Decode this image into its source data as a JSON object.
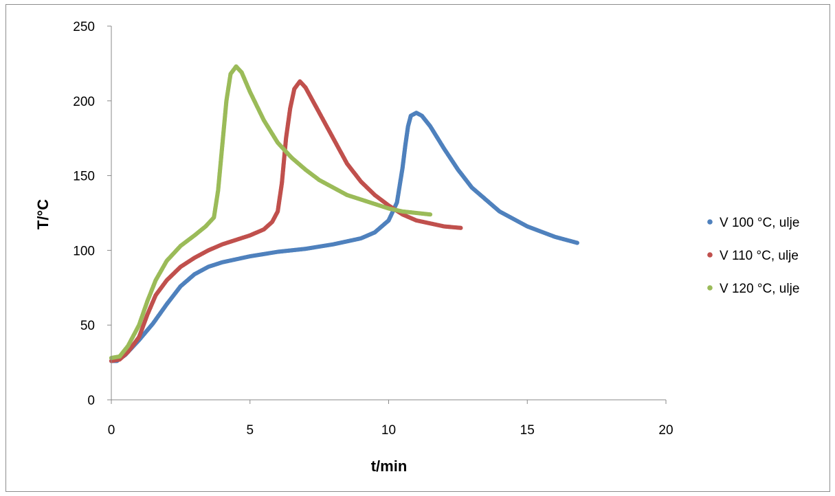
{
  "chart_data": {
    "type": "scatter",
    "title": "",
    "xlabel": "t/min",
    "ylabel": "T/°C",
    "xlim": [
      0,
      20
    ],
    "ylim": [
      0,
      250
    ],
    "xticks": [
      "0",
      "5",
      "10",
      "15",
      "20"
    ],
    "yticks": [
      "0",
      "50",
      "100",
      "150",
      "200",
      "250"
    ],
    "grid": false,
    "legend_position": "right",
    "series": [
      {
        "name": "V 100 °C, ulje",
        "color": "#4f81bd",
        "points": [
          [
            0,
            26
          ],
          [
            0.2,
            26
          ],
          [
            0.5,
            30
          ],
          [
            1.0,
            40
          ],
          [
            1.5,
            51
          ],
          [
            2.0,
            64
          ],
          [
            2.5,
            76
          ],
          [
            3.0,
            84
          ],
          [
            3.5,
            89
          ],
          [
            4.0,
            92
          ],
          [
            5.0,
            96
          ],
          [
            6.0,
            99
          ],
          [
            7.0,
            101
          ],
          [
            8.0,
            104
          ],
          [
            9.0,
            108
          ],
          [
            9.5,
            112
          ],
          [
            10.0,
            120
          ],
          [
            10.3,
            132
          ],
          [
            10.5,
            155
          ],
          [
            10.6,
            170
          ],
          [
            10.7,
            183
          ],
          [
            10.8,
            190
          ],
          [
            11.0,
            192
          ],
          [
            11.2,
            190
          ],
          [
            11.5,
            183
          ],
          [
            12.0,
            168
          ],
          [
            12.5,
            154
          ],
          [
            13.0,
            142
          ],
          [
            14.0,
            126
          ],
          [
            15.0,
            116
          ],
          [
            16.0,
            109
          ],
          [
            16.8,
            105
          ]
        ]
      },
      {
        "name": "V 110 °C, ulje",
        "color": "#c0504d",
        "points": [
          [
            0,
            26
          ],
          [
            0.3,
            27
          ],
          [
            0.6,
            32
          ],
          [
            1.0,
            42
          ],
          [
            1.3,
            57
          ],
          [
            1.6,
            70
          ],
          [
            2.0,
            80
          ],
          [
            2.5,
            89
          ],
          [
            3.0,
            95
          ],
          [
            3.5,
            100
          ],
          [
            4.0,
            104
          ],
          [
            4.5,
            107
          ],
          [
            5.0,
            110
          ],
          [
            5.5,
            114
          ],
          [
            5.8,
            119
          ],
          [
            6.0,
            126
          ],
          [
            6.15,
            145
          ],
          [
            6.3,
            175
          ],
          [
            6.45,
            195
          ],
          [
            6.6,
            208
          ],
          [
            6.8,
            213
          ],
          [
            7.0,
            209
          ],
          [
            7.5,
            192
          ],
          [
            8.0,
            175
          ],
          [
            8.5,
            158
          ],
          [
            9.0,
            146
          ],
          [
            9.5,
            137
          ],
          [
            10.0,
            130
          ],
          [
            10.5,
            124
          ],
          [
            11.0,
            120
          ],
          [
            11.5,
            118
          ],
          [
            12.0,
            116
          ],
          [
            12.6,
            115
          ]
        ]
      },
      {
        "name": "V 120 °C, ulje",
        "color": "#9bbb59",
        "points": [
          [
            0,
            28
          ],
          [
            0.3,
            29
          ],
          [
            0.6,
            36
          ],
          [
            1.0,
            50
          ],
          [
            1.3,
            66
          ],
          [
            1.6,
            80
          ],
          [
            2.0,
            93
          ],
          [
            2.5,
            103
          ],
          [
            3.0,
            110
          ],
          [
            3.4,
            116
          ],
          [
            3.7,
            122
          ],
          [
            3.85,
            140
          ],
          [
            4.0,
            170
          ],
          [
            4.15,
            200
          ],
          [
            4.3,
            218
          ],
          [
            4.5,
            223
          ],
          [
            4.7,
            219
          ],
          [
            5.0,
            206
          ],
          [
            5.5,
            187
          ],
          [
            6.0,
            172
          ],
          [
            6.5,
            162
          ],
          [
            7.0,
            154
          ],
          [
            7.5,
            147
          ],
          [
            8.0,
            142
          ],
          [
            8.5,
            137
          ],
          [
            9.0,
            134
          ],
          [
            9.5,
            131
          ],
          [
            10.0,
            128
          ],
          [
            10.5,
            126
          ],
          [
            11.0,
            125
          ],
          [
            11.5,
            124
          ]
        ]
      }
    ]
  }
}
